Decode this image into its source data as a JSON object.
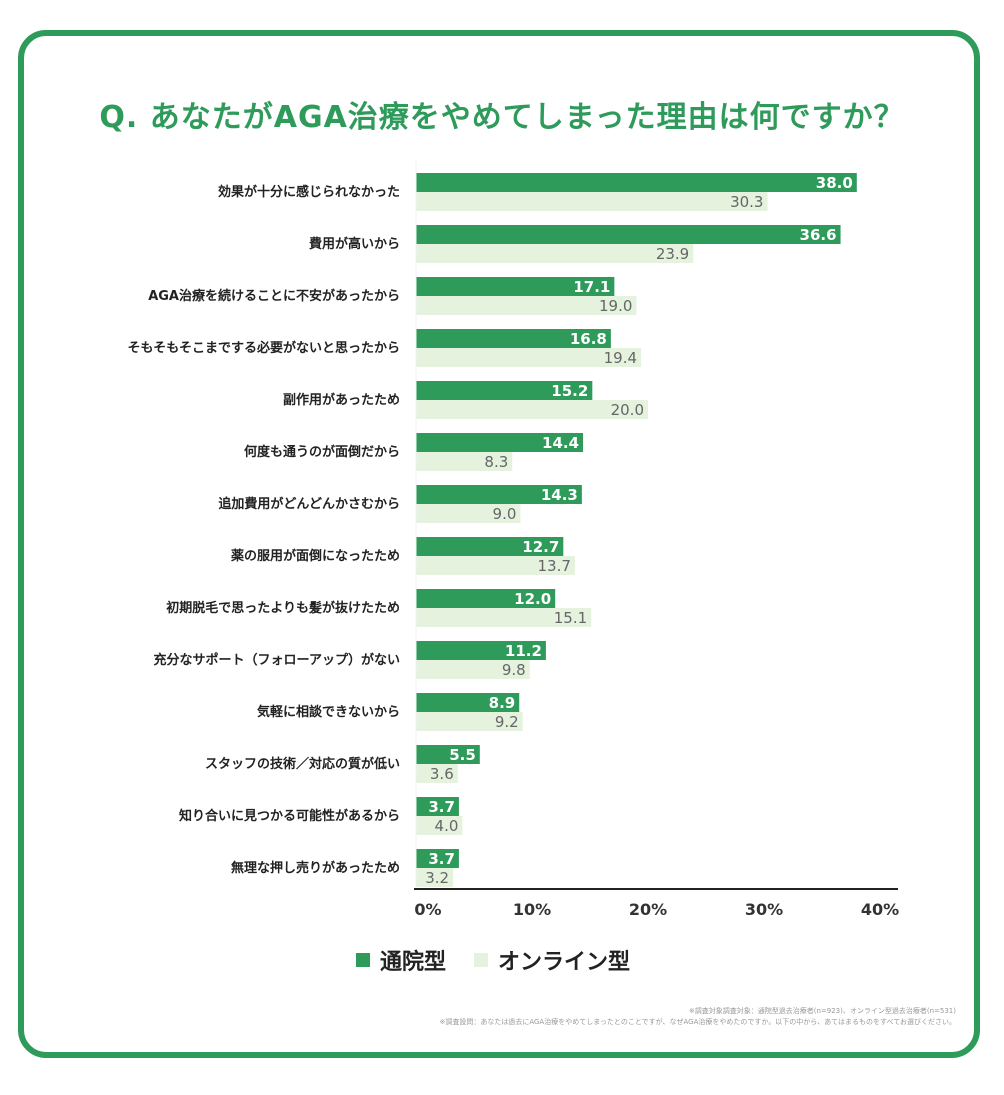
{
  "title": "Q. あなたがAGA治療をやめてしまった理由は何ですか？",
  "colors": {
    "series_a": "#2e9b5b",
    "series_b": "#e4f2de",
    "accent": "#2e9b5b"
  },
  "chart_data": {
    "type": "bar",
    "orientation": "horizontal",
    "title": "Q. あなたがAGA治療をやめてしまった理由は何ですか？",
    "categories": [
      "効果が十分に感じられなかった",
      "費用が高いから",
      "AGA治療を続けることに不安があったから",
      "そもそもそこまでする必要がないと思ったから",
      "副作用があったため",
      "何度も通うのが面倒だから",
      "追加費用がどんどんかさむから",
      "薬の服用が面倒になったため",
      "初期脱毛で思ったよりも髪が抜けたため",
      "充分なサポート（フォローアップ）がない",
      "気軽に相談できないから",
      "スタッフの技術／対応の質が低い",
      "知り合いに見つかる可能性があるから",
      "無理な押し売りがあったため"
    ],
    "series": [
      {
        "name": "通院型",
        "values": [
          38.0,
          36.6,
          17.1,
          16.8,
          15.2,
          14.4,
          14.3,
          12.7,
          12.0,
          11.2,
          8.9,
          5.5,
          3.7,
          3.7
        ]
      },
      {
        "name": "オンライン型",
        "values": [
          30.3,
          23.9,
          19.0,
          19.4,
          20.0,
          8.3,
          9.0,
          13.7,
          15.1,
          9.8,
          9.2,
          3.6,
          4.0,
          3.2
        ]
      }
    ],
    "xlim": [
      0,
      40
    ],
    "ticks": [
      "0%",
      "10%",
      "20%",
      "30%",
      "40%"
    ],
    "legend_position": "bottom"
  },
  "legend": {
    "a_label": "通院型",
    "b_label": "オンライン型"
  },
  "footnotes": {
    "line1": "※調査対象調査対象：通院型過去治療者(n=923)、オンライン型過去治療者(n=531)",
    "line2": "※調査設問：あなたは過去にAGA治療をやめてしまったとのことですが、なぜAGA治療をやめたのですか。以下の中から、あてはまるものをすべてお選びください。"
  }
}
